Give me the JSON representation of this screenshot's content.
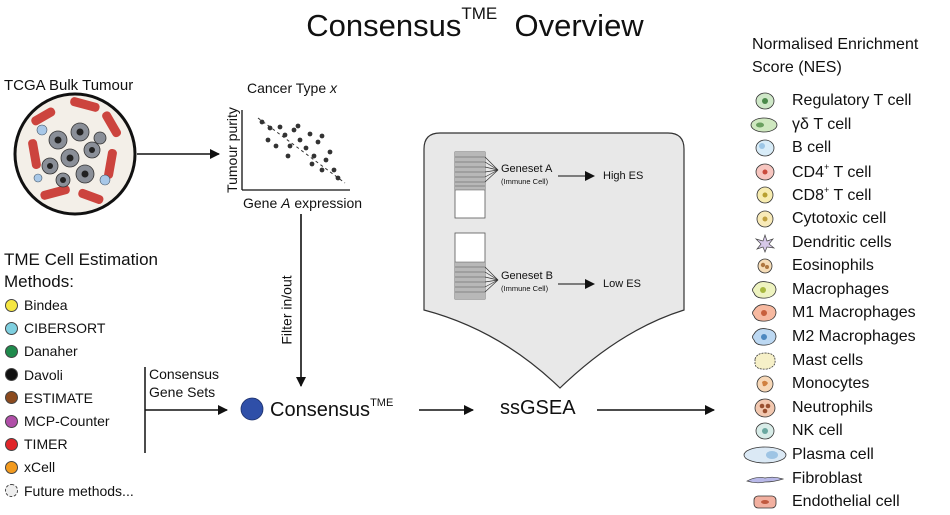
{
  "title": {
    "main": "Consensus",
    "sup": "TME",
    "rest": "Overview"
  },
  "tcga": {
    "label": "TCGA Bulk Tumour"
  },
  "scatter": {
    "title_prefix": "Cancer Type ",
    "title_var": "x",
    "ylabel": "Tumour purity",
    "xlabel_prefix": "Gene ",
    "xlabel_var": "A",
    "xlabel_suffix": " expression"
  },
  "filter_label": "Filter in/out",
  "methods": {
    "heading_line1": "TME Cell Estimation",
    "heading_line2": "Methods:",
    "items": [
      {
        "label": "Bindea",
        "color": "#f5e642"
      },
      {
        "label": "CIBERSORT",
        "color": "#7fd0e0"
      },
      {
        "label": "Danaher",
        "color": "#1f8a4c"
      },
      {
        "label": "Davoli",
        "color": "#111111"
      },
      {
        "label": "ESTIMATE",
        "color": "#8b4a1e"
      },
      {
        "label": "MCP-Counter",
        "color": "#b04fa8"
      },
      {
        "label": "TIMER",
        "color": "#e0262a"
      },
      {
        "label": "xCell",
        "color": "#f29a1f"
      },
      {
        "label": "Future methods...",
        "color": "#eeeeee"
      }
    ]
  },
  "consensus_gene_sets": {
    "line1": "Consensus",
    "line2": "Gene Sets"
  },
  "consensus_node": {
    "label": "Consensus",
    "sup": "TME",
    "color": "#2f4fa8"
  },
  "ssgsea": {
    "label": "ssGSEA"
  },
  "genesets": {
    "a": {
      "name": "Geneset A",
      "sub": "(Immune Cell)",
      "result": "High ES"
    },
    "b": {
      "name": "Geneset B",
      "sub": "(Immune Cell)",
      "result": "Low ES"
    }
  },
  "nes": {
    "heading_line1": "Normalised Enrichment",
    "heading_line2": "Score (NES)",
    "cells": [
      {
        "label": "Regulatory T cell",
        "icon": "regulatory-t-cell-icon"
      },
      {
        "label": "γδ  T cell",
        "icon": "gamma-delta-t-cell-icon"
      },
      {
        "label": "B cell",
        "icon": "b-cell-icon"
      },
      {
        "label": "CD4",
        "sup": "+",
        "tail": " T cell",
        "icon": "cd4-t-cell-icon"
      },
      {
        "label": "CD8",
        "sup": "+",
        "tail": " T cell",
        "icon": "cd8-t-cell-icon"
      },
      {
        "label": "Cytotoxic cell",
        "icon": "cytotoxic-cell-icon"
      },
      {
        "label": "Dendritic cells",
        "icon": "dendritic-cell-icon"
      },
      {
        "label": "Eosinophils",
        "icon": "eosinophil-icon"
      },
      {
        "label": "Macrophages",
        "icon": "macrophage-icon"
      },
      {
        "label": "M1 Macrophages",
        "icon": "m1-macrophage-icon"
      },
      {
        "label": "M2 Macrophages",
        "icon": "m2-macrophage-icon"
      },
      {
        "label": "Mast cells",
        "icon": "mast-cell-icon"
      },
      {
        "label": "Monocytes",
        "icon": "monocyte-icon"
      },
      {
        "label": "Neutrophils",
        "icon": "neutrophil-icon"
      },
      {
        "label": "NK cell",
        "icon": "nk-cell-icon"
      },
      {
        "label": "Plasma cell",
        "icon": "plasma-cell-icon"
      },
      {
        "label": "Fibroblast",
        "icon": "fibroblast-icon"
      },
      {
        "label": "Endothelial cell",
        "icon": "endothelial-cell-icon"
      }
    ]
  }
}
